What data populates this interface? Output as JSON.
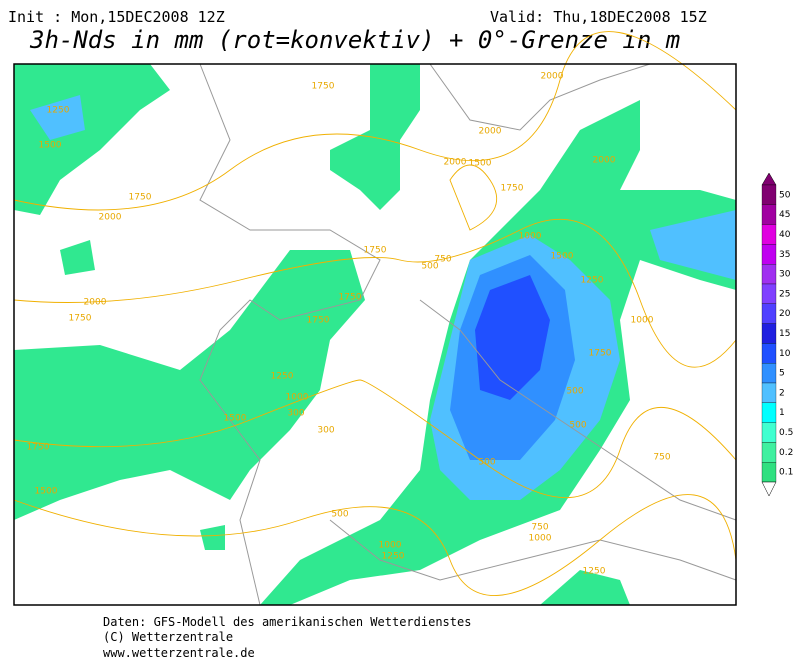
{
  "header": {
    "init": "Init : Mon,15DEC2008 12Z",
    "valid": "Valid: Thu,18DEC2008 15Z",
    "title": "3h-Nds in mm (rot=konvektiv) + 0°-Grenze in m"
  },
  "legend": {
    "labels": [
      "50",
      "45",
      "40",
      "35",
      "30",
      "25",
      "20",
      "15",
      "10",
      "5",
      "2",
      "1",
      "0.5",
      "0.2",
      "0.1"
    ]
  },
  "contour_labels": [
    "1750",
    "1250",
    "1500",
    "2000",
    "1750",
    "2000",
    "1750",
    "1750",
    "1750",
    "1250",
    "1000",
    "300",
    "1500",
    "300",
    "1750",
    "1500",
    "500",
    "1000",
    "1250",
    "1750",
    "2000",
    "2000",
    "1500",
    "1750",
    "1000",
    "1500",
    "1250",
    "1000",
    "1750",
    "500",
    "500",
    "500",
    "750",
    "750",
    "1000",
    "2000",
    "2000",
    "1250",
    "750",
    "500"
  ],
  "footer": {
    "source": "Daten: GFS-Modell des amerikanischen Wetterdienstes",
    "copyright": "(C) Wetterzentrale",
    "url": "www.wetterzentrale.de"
  }
}
